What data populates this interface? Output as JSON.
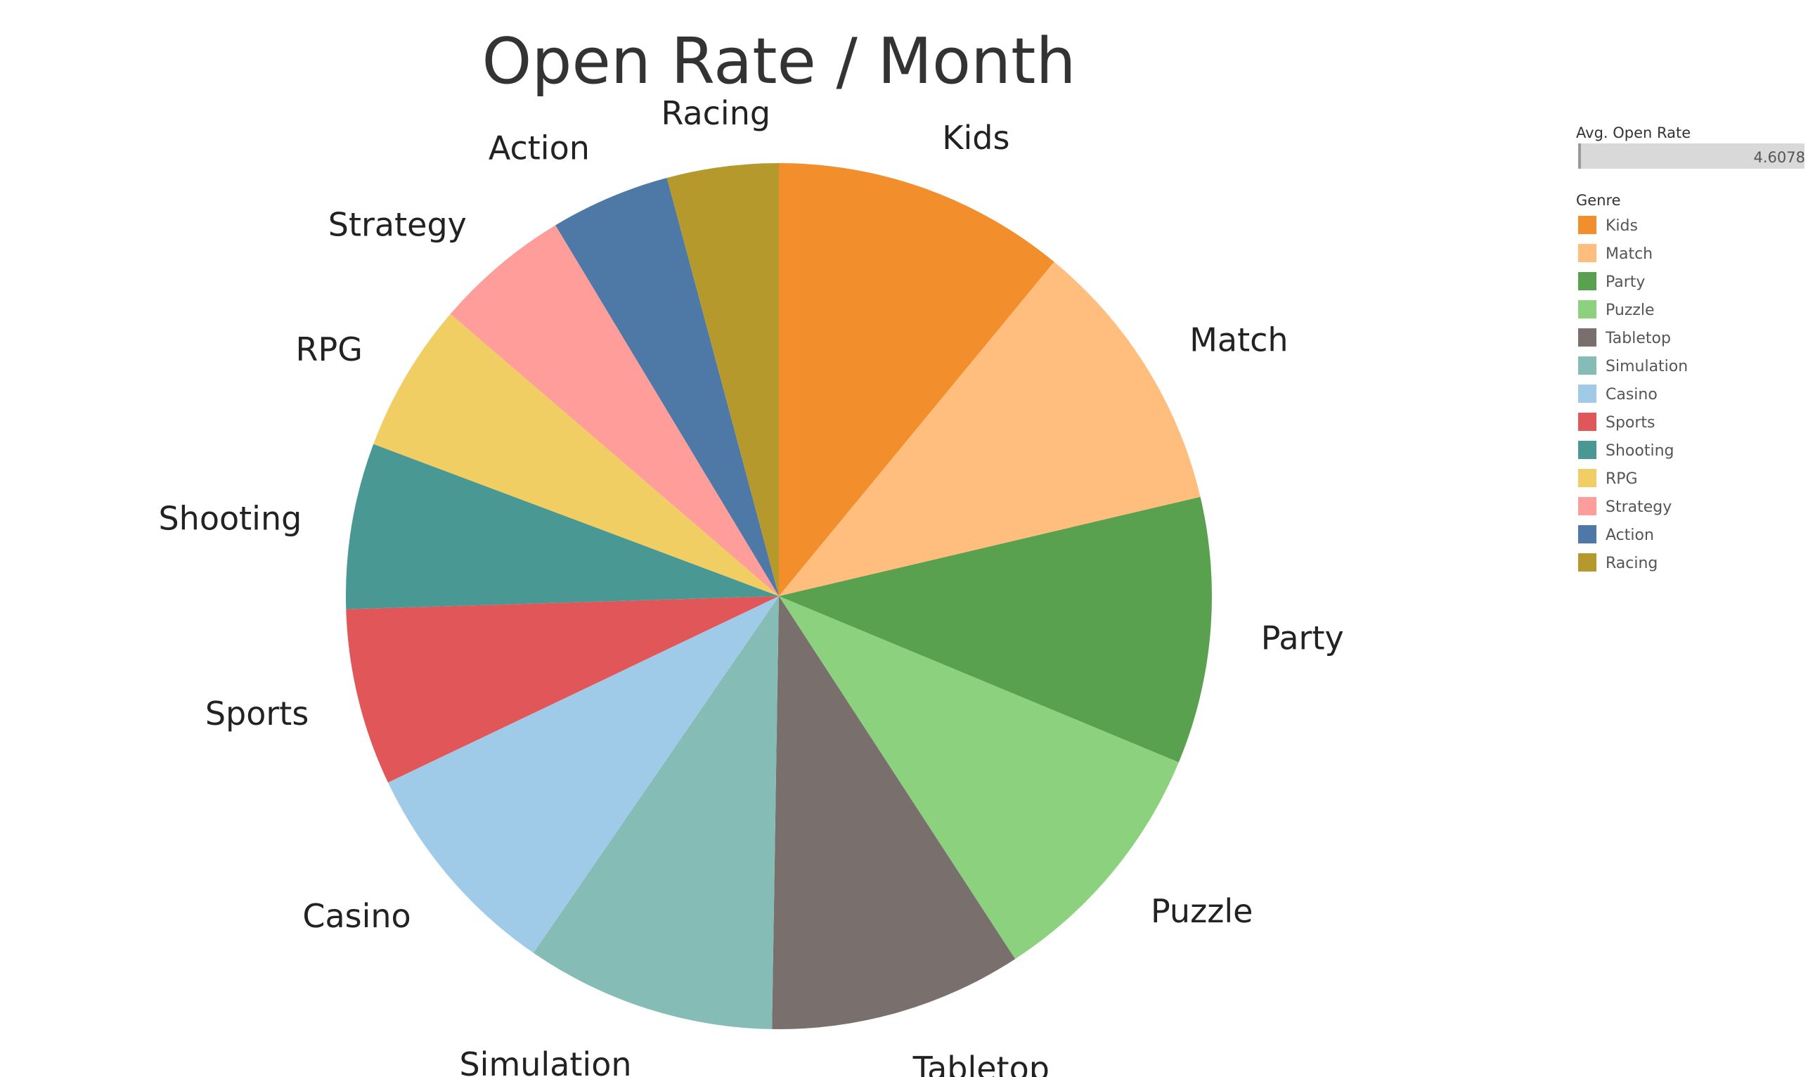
{
  "chart_data": {
    "type": "pie",
    "title": "Open Rate / Month",
    "size_legend": {
      "title": "Avg. Open Rate",
      "value": "4.6078"
    },
    "color_legend": {
      "title": "Genre",
      "placement": "right"
    },
    "start": "12 o'clock",
    "direction": "clockwise",
    "slices": [
      {
        "label": "Kids",
        "value": 10.8,
        "color": "#F28E2B"
      },
      {
        "label": "Match",
        "value": 10.2,
        "color": "#FFBE7D"
      },
      {
        "label": "Party",
        "value": 9.8,
        "color": "#59A14F"
      },
      {
        "label": "Puzzle",
        "value": 9.4,
        "color": "#8CD17D"
      },
      {
        "label": "Tabletop",
        "value": 9.3,
        "color": "#79706E"
      },
      {
        "label": "Simulation",
        "value": 9.2,
        "color": "#86BCB6"
      },
      {
        "label": "Casino",
        "value": 8.2,
        "color": "#A0CBE8"
      },
      {
        "label": "Sports",
        "value": 6.5,
        "color": "#E15759"
      },
      {
        "label": "Shooting",
        "value": 6.1,
        "color": "#499894"
      },
      {
        "label": "RPG",
        "value": 5.5,
        "color": "#F1CE63"
      },
      {
        "label": "Strategy",
        "value": 5.0,
        "color": "#FF9D9A"
      },
      {
        "label": "Action",
        "value": 4.4,
        "color": "#4E79A7"
      },
      {
        "label": "Racing",
        "value": 4.1,
        "color": "#B6992D"
      }
    ]
  }
}
